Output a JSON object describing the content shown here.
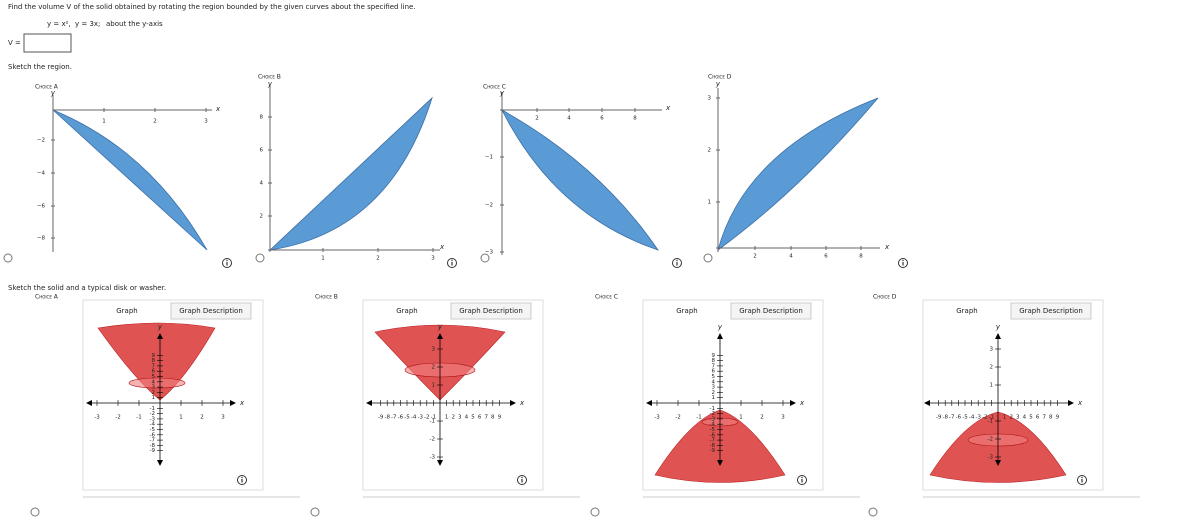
{
  "question": "Find the volume V of the solid obtained by rotating the region bounded by the given curves about the specified line.",
  "equation": [
    "y = x²,",
    "y = 3x;",
    "about the y-axis"
  ],
  "answer_label": "V =",
  "region_heading": "Sketch the region.",
  "axis_labels": {
    "x": "x",
    "y": "y"
  },
  "regions": [
    {
      "label": "Choice A",
      "xticks": [
        "1",
        "2",
        "3"
      ],
      "yticks": [
        "−2",
        "−4",
        "−6",
        "−8"
      ]
    },
    {
      "label": "Choice B",
      "xticks": [
        "1",
        "2",
        "3"
      ],
      "yticks": [
        "2",
        "4",
        "6",
        "8"
      ]
    },
    {
      "label": "Choice C",
      "xticks": [
        "2",
        "4",
        "6",
        "8"
      ],
      "yticks": [
        "−1",
        "−2",
        "−3"
      ]
    },
    {
      "label": "Choice D",
      "xticks": [
        "2",
        "4",
        "6",
        "8"
      ],
      "yticks": [
        "1",
        "2",
        "3"
      ]
    }
  ],
  "solid_heading": "Sketch the solid and a typical disk or washer.",
  "solids": [
    {
      "label": "Choice A",
      "tabs": [
        "Graph",
        "Graph Description"
      ],
      "xticks": [
        "-3",
        "-2",
        "-1",
        "1",
        "2",
        "3"
      ],
      "yticks": [
        "9",
        "8",
        "7",
        "6",
        "5",
        "4",
        "3",
        "2",
        "1",
        "-1",
        "-2",
        "-3",
        "-4",
        "-5",
        "-6",
        "-7",
        "-8",
        "-9"
      ]
    },
    {
      "label": "Choice B",
      "tabs": [
        "Graph",
        "Graph Description"
      ],
      "xticks": [
        "-9",
        "-8",
        "-7",
        "-6",
        "-5",
        "-4",
        "-3",
        "-2",
        "-1",
        "1",
        "2",
        "3",
        "4",
        "5",
        "6",
        "7",
        "8",
        "9"
      ],
      "yticks": [
        "3",
        "2",
        "1",
        "-1",
        "-2",
        "-3"
      ]
    },
    {
      "label": "Choice C",
      "tabs": [
        "Graph",
        "Graph Description"
      ],
      "xticks": [
        "-3",
        "-2",
        "-1",
        "1",
        "2",
        "3"
      ],
      "yticks": [
        "9",
        "8",
        "7",
        "6",
        "5",
        "4",
        "3",
        "2",
        "1",
        "-1",
        "-2",
        "-3",
        "-4",
        "-5",
        "-6",
        "-7",
        "-8",
        "-9"
      ]
    },
    {
      "label": "Choice D",
      "tabs": [
        "Graph",
        "Graph Description"
      ],
      "xticks": [
        "-9",
        "-8",
        "-7",
        "-6",
        "-5",
        "-4",
        "-3",
        "-2",
        "-1",
        "1",
        "2",
        "3",
        "4",
        "5",
        "6",
        "7",
        "8",
        "9"
      ],
      "yticks": [
        "3",
        "2",
        "1",
        "-1",
        "-2",
        "-3"
      ]
    }
  ]
}
